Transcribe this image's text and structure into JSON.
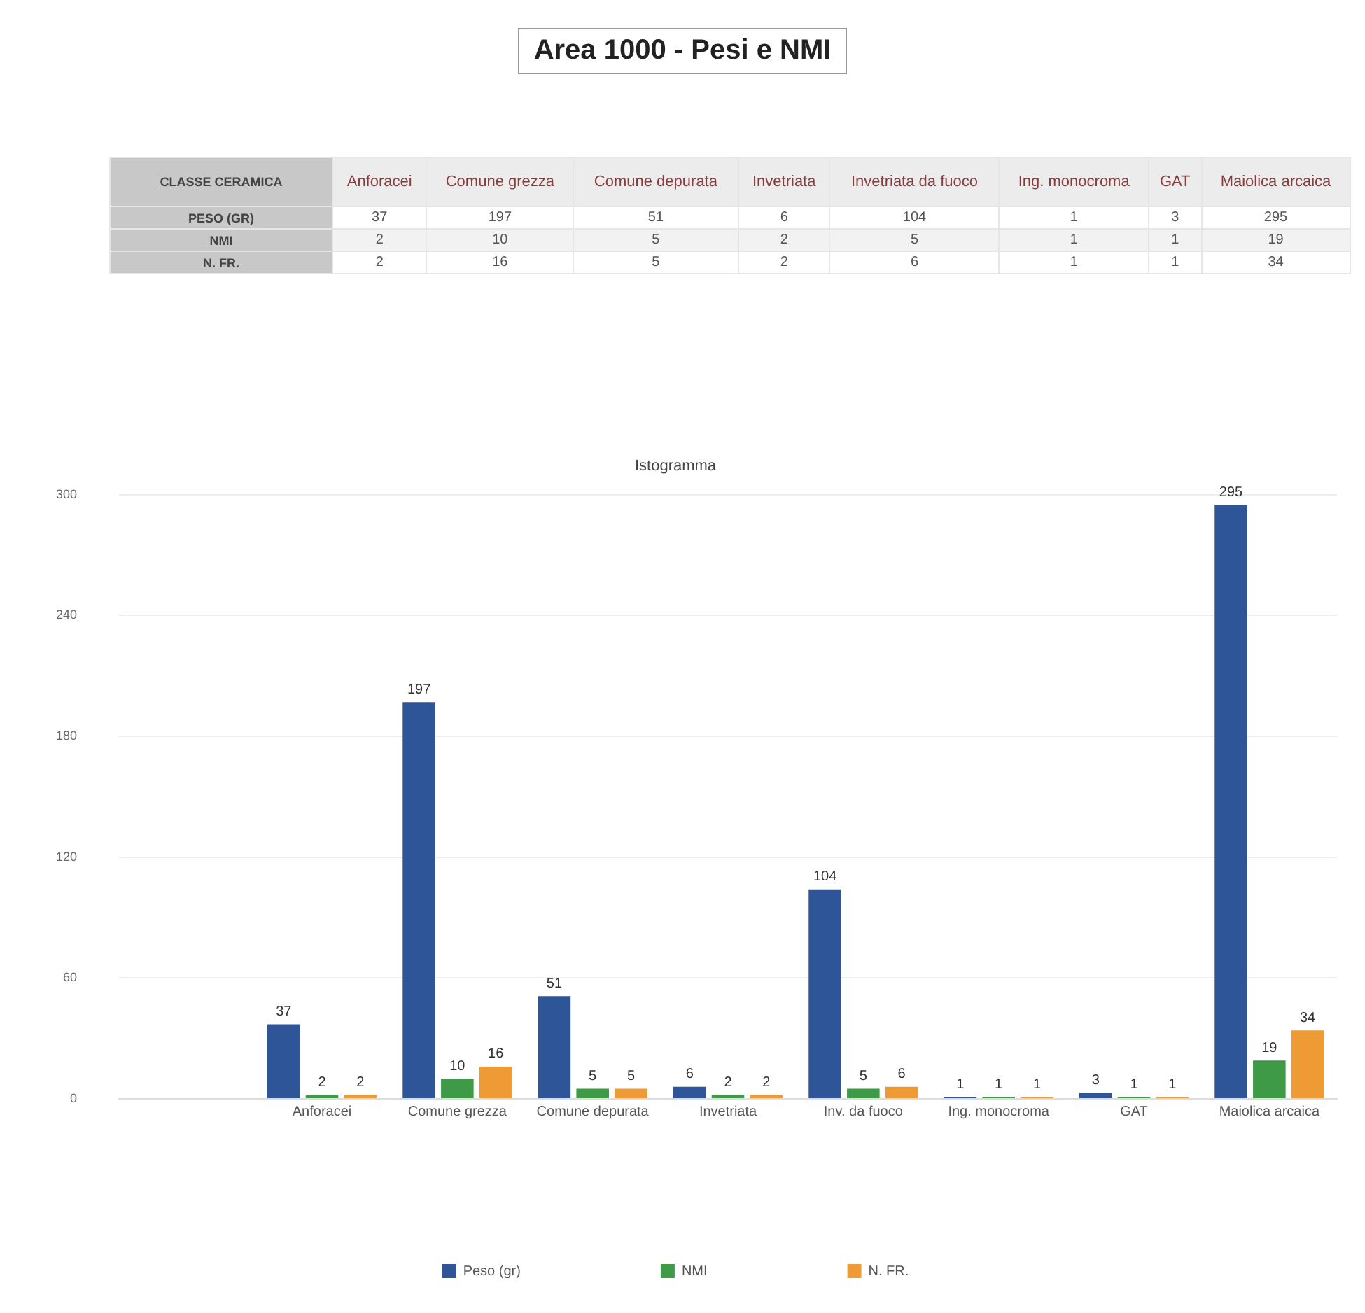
{
  "chart_data": [
    {
      "type": "other",
      "title": "Area 1000 - Pesi e NMI",
      "xlabel": "CLASSE CERAMICA",
      "categories": [
        "Anforacei",
        "Comune grezza",
        "Comune depurata",
        "Invetriata",
        "Invetriata da fuoco",
        "Ing. monocroma",
        "GAT",
        "Maiolica arcaica"
      ],
      "series": [
        {
          "name": "PESO (GR)",
          "values": [
            37,
            197,
            51,
            6,
            104,
            1,
            3,
            295
          ]
        },
        {
          "name": "NMI",
          "values": [
            2,
            10,
            5,
            2,
            5,
            1,
            1,
            19
          ]
        },
        {
          "name": "N. FR.",
          "values": [
            2,
            16,
            5,
            2,
            6,
            1,
            1,
            34
          ]
        }
      ],
      "data_labels": true
    },
    {
      "type": "bar",
      "title": "Istogramma",
      "categories": [
        null,
        "Anforacei",
        "Comune grezza",
        "Comune depurata",
        "Invetriata",
        "Inv. da fuoco",
        "Ing. monocroma",
        "GAT",
        "Maiolica arcaica"
      ],
      "series": [
        {
          "name": "Peso (gr)",
          "color": "#2d5597",
          "values": [
            null,
            37,
            197,
            51,
            6,
            104,
            1,
            3,
            295
          ]
        },
        {
          "name": "NMI",
          "color": "#3e9a47",
          "values": [
            null,
            2,
            10,
            5,
            2,
            5,
            1,
            1,
            19
          ]
        },
        {
          "name": "N. FR.",
          "color": "#ee9b35",
          "values": [
            null,
            2,
            16,
            5,
            2,
            6,
            1,
            1,
            34
          ]
        }
      ],
      "ylim": [
        0,
        300
      ],
      "yticks": [
        0,
        60,
        120,
        180,
        240,
        300
      ],
      "grid": "y",
      "legend": "bottom",
      "data_labels": true
    }
  ]
}
